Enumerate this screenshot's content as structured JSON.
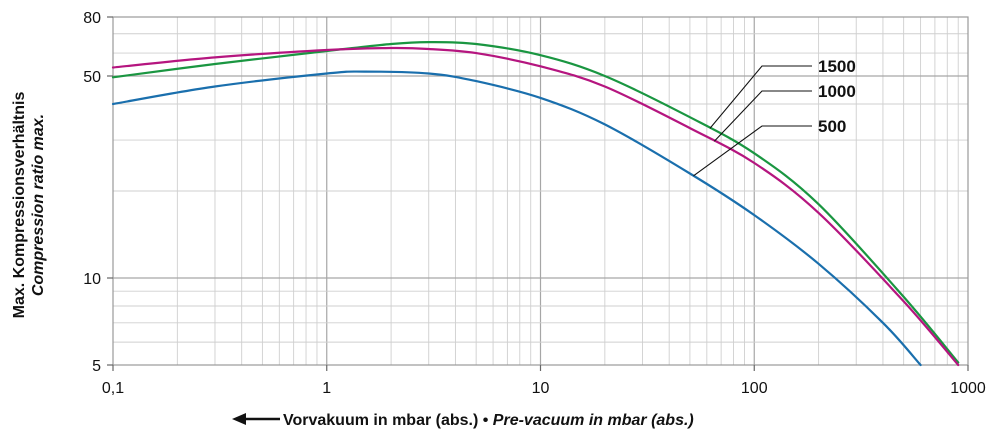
{
  "chart_data": {
    "type": "line",
    "x_scale": "log",
    "y_scale": "log",
    "xlim": [
      0.1,
      1000
    ],
    "ylim": [
      5,
      80
    ],
    "grid": true,
    "legend_placement": "right, labels with leader lines",
    "x_ticks": [
      {
        "value": 0.1,
        "label": "0,1"
      },
      {
        "value": 1,
        "label": "1"
      },
      {
        "value": 10,
        "label": "10"
      },
      {
        "value": 100,
        "label": "100"
      },
      {
        "value": 1000,
        "label": "1000"
      }
    ],
    "y_ticks": [
      {
        "value": 5,
        "label": "5"
      },
      {
        "value": 10,
        "label": "10"
      },
      {
        "value": 50,
        "label": "50"
      },
      {
        "value": 80,
        "label": "80"
      }
    ],
    "ylabel_line1": "Max. Kompressionsverhältnis",
    "ylabel_line2": "Compression ratio max.",
    "xlabel_part1": "Vorvakuum in mbar (abs.) • ",
    "xlabel_part2": "Pre-vacuum in mbar (abs.)",
    "xlabel_arrow": "←",
    "series": [
      {
        "name": "1500",
        "color": "#1a9641",
        "points": [
          [
            0.1,
            49.5
          ],
          [
            0.3,
            55
          ],
          [
            1,
            61
          ],
          [
            2,
            64.5
          ],
          [
            3,
            65.5
          ],
          [
            5,
            64.5
          ],
          [
            10,
            59
          ],
          [
            20,
            50
          ],
          [
            50,
            36
          ],
          [
            100,
            27
          ],
          [
            200,
            18
          ],
          [
            500,
            8.6
          ],
          [
            900,
            5.1
          ]
        ]
      },
      {
        "name": "1000",
        "color": "#b5157f",
        "points": [
          [
            0.1,
            53.5
          ],
          [
            0.3,
            58
          ],
          [
            1,
            61.5
          ],
          [
            2,
            62.5
          ],
          [
            3,
            62
          ],
          [
            5,
            60
          ],
          [
            10,
            54
          ],
          [
            20,
            46
          ],
          [
            50,
            33
          ],
          [
            100,
            25
          ],
          [
            200,
            16.8
          ],
          [
            500,
            8.3
          ],
          [
            900,
            5.0
          ]
        ]
      },
      {
        "name": "500",
        "color": "#1a6fad",
        "points": [
          [
            0.1,
            40
          ],
          [
            0.3,
            46
          ],
          [
            1,
            51
          ],
          [
            1.5,
            51.8
          ],
          [
            3,
            51
          ],
          [
            5,
            48
          ],
          [
            10,
            42
          ],
          [
            20,
            34
          ],
          [
            50,
            23
          ],
          [
            100,
            16.5
          ],
          [
            200,
            11.2
          ],
          [
            400,
            7
          ],
          [
            600,
            5.0
          ]
        ]
      }
    ]
  }
}
